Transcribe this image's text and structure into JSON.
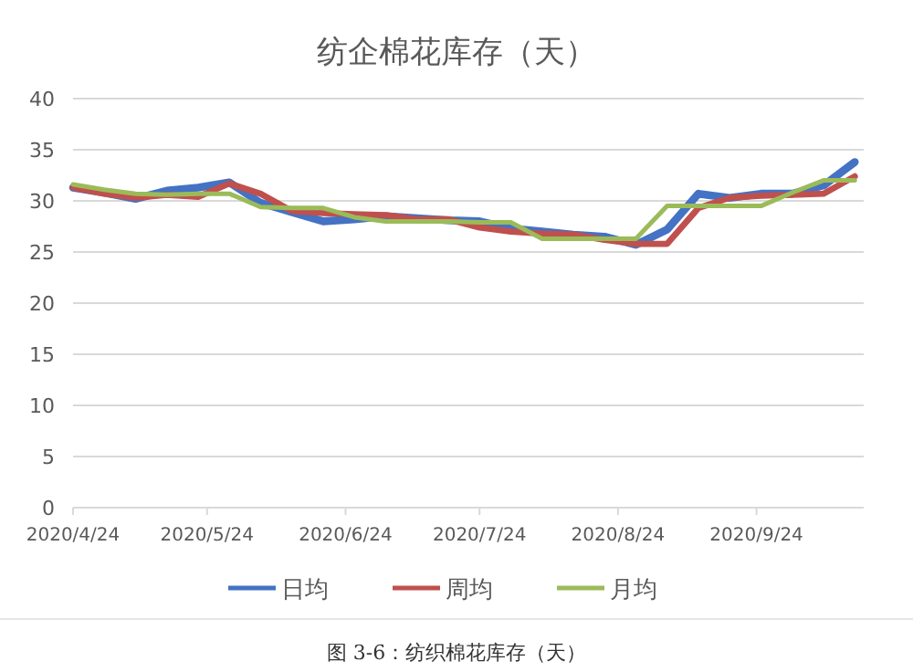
{
  "chart_data": {
    "type": "line",
    "title": "纺企棉花库存（天）",
    "x": [
      "2020-04-24",
      "2020-05-01",
      "2020-05-08",
      "2020-05-15",
      "2020-05-22",
      "2020-05-29",
      "2020-06-05",
      "2020-06-12",
      "2020-06-19",
      "2020-06-26",
      "2020-07-03",
      "2020-07-10",
      "2020-07-17",
      "2020-07-24",
      "2020-07-31",
      "2020-08-07",
      "2020-08-14",
      "2020-08-21",
      "2020-08-28",
      "2020-09-04",
      "2020-09-11",
      "2020-09-18",
      "2020-09-25",
      "2020-10-02",
      "2020-10-09",
      "2020-10-16"
    ],
    "series": [
      {
        "name": "日均",
        "color": "#4472c4",
        "values": [
          31.3,
          30.8,
          30.2,
          31.0,
          31.3,
          31.8,
          29.8,
          28.9,
          28.0,
          28.2,
          28.5,
          28.3,
          28.1,
          28.0,
          27.3,
          27.0,
          26.7,
          26.5,
          25.7,
          27.2,
          30.7,
          30.3,
          30.7,
          30.7,
          31.5,
          33.8
        ]
      },
      {
        "name": "周均",
        "color": "#c0504d",
        "values": [
          31.3,
          30.7,
          30.3,
          30.6,
          30.4,
          31.7,
          30.7,
          29.0,
          28.8,
          28.7,
          28.6,
          28.2,
          28.2,
          27.4,
          27.0,
          26.8,
          26.7,
          26.2,
          25.8,
          25.8,
          29.3,
          30.3,
          30.5,
          30.6,
          30.7,
          32.4
        ]
      },
      {
        "name": "月均",
        "color": "#9bbb59",
        "values": [
          31.6,
          31.1,
          30.7,
          30.6,
          30.7,
          30.7,
          29.4,
          29.3,
          29.3,
          28.4,
          28.0,
          28.0,
          28.0,
          27.9,
          27.9,
          26.3,
          26.3,
          26.3,
          26.3,
          29.5,
          29.5,
          29.5,
          29.5,
          30.8,
          32.0,
          32.0
        ]
      }
    ],
    "xlim": [
      "2020-04-24",
      "2020-10-18"
    ],
    "xticks": [
      {
        "value": "2020-04-24",
        "label": "2020/4/24"
      },
      {
        "value": "2020-05-24",
        "label": "2020/5/24"
      },
      {
        "value": "2020-06-24",
        "label": "2020/6/24"
      },
      {
        "value": "2020-07-24",
        "label": "2020/7/24"
      },
      {
        "value": "2020-08-24",
        "label": "2020/8/24"
      },
      {
        "value": "2020-09-24",
        "label": "2020/9/24"
      }
    ],
    "ylim": [
      0,
      40
    ],
    "yticks": [
      0,
      5,
      10,
      15,
      20,
      25,
      30,
      35,
      40
    ],
    "grid": "y",
    "legend": "bottom",
    "marker": "none",
    "line_style": "solid",
    "annotations": [
      "图 3-6：纺织棉花库存（天）"
    ]
  }
}
